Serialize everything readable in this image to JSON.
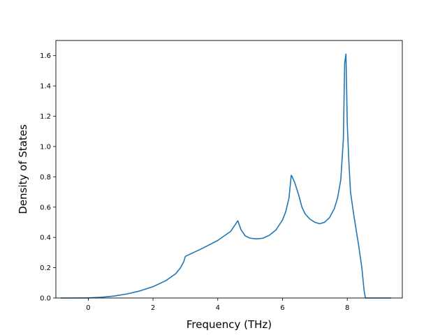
{
  "chart_data": {
    "type": "line",
    "xlabel": "Frequency (THz)",
    "ylabel": "Density of States",
    "xlim": [
      -1.0,
      9.7
    ],
    "ylim": [
      0.0,
      1.7
    ],
    "xticks": [
      0,
      2,
      4,
      6,
      8
    ],
    "xtick_labels": [
      "0",
      "2",
      "4",
      "6",
      "8"
    ],
    "yticks": [
      0.0,
      0.2,
      0.4,
      0.6,
      0.8,
      1.0,
      1.2,
      1.4,
      1.6
    ],
    "ytick_labels": [
      "0.0",
      "0.2",
      "0.4",
      "0.6",
      "0.8",
      "1.0",
      "1.2",
      "1.4",
      "1.6"
    ],
    "grid": false,
    "line_color": "#1f77b4",
    "series": [
      {
        "x": [
          -0.85,
          -0.4,
          0.0,
          0.4,
          0.8,
          1.2,
          1.6,
          2.0,
          2.4,
          2.7,
          2.85,
          2.95,
          3.0,
          3.5,
          4.0,
          4.4,
          4.62,
          4.72,
          4.85,
          5.0,
          5.2,
          5.4,
          5.6,
          5.8,
          6.0,
          6.1,
          6.2,
          6.27,
          6.3,
          6.38,
          6.5,
          6.6,
          6.7,
          6.85,
          7.0,
          7.15,
          7.3,
          7.45,
          7.6,
          7.7,
          7.8,
          7.88,
          7.92,
          7.96,
          8.0,
          8.05,
          8.1,
          8.2,
          8.35,
          8.45,
          8.52,
          8.56,
          9.0,
          9.35
        ],
        "y": [
          0.0,
          0.0,
          0.001,
          0.005,
          0.013,
          0.027,
          0.047,
          0.075,
          0.115,
          0.16,
          0.2,
          0.24,
          0.275,
          0.325,
          0.38,
          0.44,
          0.51,
          0.45,
          0.41,
          0.395,
          0.39,
          0.395,
          0.415,
          0.45,
          0.515,
          0.57,
          0.66,
          0.81,
          0.8,
          0.76,
          0.68,
          0.6,
          0.555,
          0.52,
          0.5,
          0.49,
          0.5,
          0.53,
          0.59,
          0.66,
          0.78,
          1.05,
          1.55,
          1.61,
          1.15,
          0.9,
          0.7,
          0.55,
          0.35,
          0.2,
          0.05,
          0.0,
          0.0,
          0.0
        ]
      }
    ]
  }
}
